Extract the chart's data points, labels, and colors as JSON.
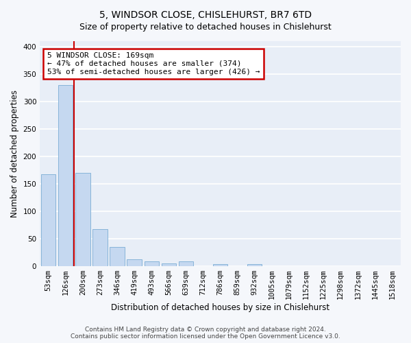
{
  "title1": "5, WINDSOR CLOSE, CHISLEHURST, BR7 6TD",
  "title2": "Size of property relative to detached houses in Chislehurst",
  "xlabel": "Distribution of detached houses by size in Chislehurst",
  "ylabel": "Number of detached properties",
  "categories": [
    "53sqm",
    "126sqm",
    "200sqm",
    "273sqm",
    "346sqm",
    "419sqm",
    "493sqm",
    "566sqm",
    "639sqm",
    "712sqm",
    "786sqm",
    "859sqm",
    "932sqm",
    "1005sqm",
    "1079sqm",
    "1152sqm",
    "1225sqm",
    "1298sqm",
    "1372sqm",
    "1445sqm",
    "1518sqm"
  ],
  "values": [
    168,
    330,
    170,
    67,
    35,
    12,
    9,
    5,
    9,
    0,
    3,
    0,
    4,
    0,
    0,
    0,
    0,
    0,
    0,
    0,
    0
  ],
  "bar_color": "#c5d8f0",
  "bar_edge_color": "#7aadd4",
  "vline_color": "#cc0000",
  "annotation_text": "5 WINDSOR CLOSE: 169sqm\n← 47% of detached houses are smaller (374)\n53% of semi-detached houses are larger (426) →",
  "annotation_box_color": "#cc0000",
  "footer1": "Contains HM Land Registry data © Crown copyright and database right 2024.",
  "footer2": "Contains public sector information licensed under the Open Government Licence v3.0.",
  "ylim": [
    0,
    410
  ],
  "yticks": [
    0,
    50,
    100,
    150,
    200,
    250,
    300,
    350,
    400
  ],
  "bg_color": "#f5f7fb",
  "plot_bg_color": "#e8eef7",
  "grid_color": "#ffffff",
  "title1_fontsize": 10,
  "title2_fontsize": 9,
  "xlabel_fontsize": 8.5,
  "ylabel_fontsize": 8.5,
  "tick_fontsize": 7.5,
  "footer_fontsize": 6.5,
  "ann_fontsize": 8
}
